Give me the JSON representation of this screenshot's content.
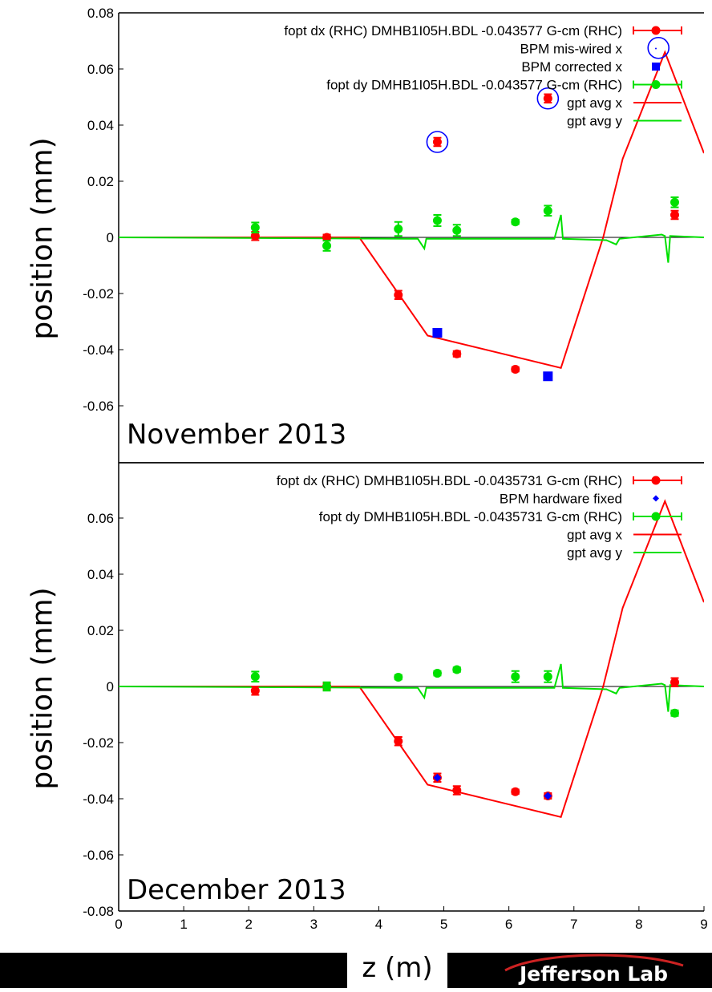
{
  "axis": {
    "xlabel": "z (m)",
    "ylabel": "position (mm)",
    "xlim": [
      0,
      9
    ],
    "xticks": [
      "0",
      "1",
      "2",
      "3",
      "4",
      "5",
      "6",
      "7",
      "8",
      "9"
    ]
  },
  "footer": {
    "logo_text": "Jefferson Lab"
  },
  "colors": {
    "red": "#ff0000",
    "green": "#00e000",
    "blue": "#0000ff",
    "black": "#000000"
  },
  "chart_data": [
    {
      "type": "scatter",
      "title": "",
      "annotation": "November 2013",
      "xlabel": "z (m)",
      "ylabel": "position (mm)",
      "xlim": [
        0,
        9
      ],
      "ylim": [
        -0.08,
        0.08
      ],
      "yticks": [
        "0.08",
        "0.06",
        "0.04",
        "0.02",
        "0",
        "-0.02",
        "-0.04",
        "-0.06"
      ],
      "grid": false,
      "legend_position": "top-right",
      "series": [
        {
          "name": "fopt dx (RHC) DMHB1I05H.BDL -0.043577 G-cm (RHC)",
          "kind": "errorpoints",
          "color": "#ff0000",
          "points": [
            [
              2.1,
              0.0005,
              0.0015
            ],
            [
              3.2,
              0.0,
              0.001
            ],
            [
              4.3,
              -0.0205,
              0.0015
            ],
            [
              4.9,
              0.034,
              0.0015
            ],
            [
              5.2,
              -0.0415,
              0.001
            ],
            [
              6.1,
              -0.047,
              0.0008
            ],
            [
              6.6,
              0.0495,
              0.0015
            ],
            [
              8.55,
              0.008,
              0.0015
            ]
          ]
        },
        {
          "name": "BPM mis-wired x",
          "kind": "circles",
          "color": "#0000ff",
          "points": [
            [
              4.9,
              0.034
            ],
            [
              6.6,
              0.0495
            ],
            [
              8.3,
              0.0675
            ]
          ]
        },
        {
          "name": "BPM corrected x",
          "kind": "squares",
          "color": "#0000ff",
          "points": [
            [
              4.9,
              -0.034
            ],
            [
              6.6,
              -0.0495
            ]
          ]
        },
        {
          "name": "fopt dy DMHB1I05H.BDL -0.043577 G-cm (RHC)",
          "kind": "errorpoints",
          "color": "#00e000",
          "points": [
            [
              2.1,
              0.0035,
              0.0018
            ],
            [
              3.2,
              -0.003,
              0.0018
            ],
            [
              4.3,
              0.003,
              0.0025
            ],
            [
              4.9,
              0.006,
              0.002
            ],
            [
              5.2,
              0.0025,
              0.002
            ],
            [
              6.1,
              0.0055,
              0.0008
            ],
            [
              6.6,
              0.0095,
              0.0018
            ],
            [
              8.55,
              0.0125,
              0.0018
            ]
          ]
        },
        {
          "name": "gpt avg x",
          "kind": "line",
          "color": "#ff0000",
          "points": [
            [
              0,
              0
            ],
            [
              3.7,
              0
            ],
            [
              4.75,
              -0.035
            ],
            [
              6.8,
              -0.0465
            ],
            [
              7.45,
              0
            ],
            [
              7.75,
              0.028
            ],
            [
              8.4,
              0.066
            ],
            [
              9.0,
              0.03
            ]
          ]
        },
        {
          "name": "gpt avg y",
          "kind": "line",
          "color": "#00e000",
          "points": [
            [
              0,
              0
            ],
            [
              4.6,
              -0.0005
            ],
            [
              4.7,
              -0.004
            ],
            [
              4.73,
              -0.0005
            ],
            [
              6.7,
              -0.0005
            ],
            [
              6.8,
              0.008
            ],
            [
              6.83,
              -0.0005
            ],
            [
              7.5,
              -0.001
            ],
            [
              7.65,
              -0.0025
            ],
            [
              7.7,
              -0.0005
            ],
            [
              8.35,
              0.001
            ],
            [
              8.4,
              0.0005
            ],
            [
              8.45,
              -0.009
            ],
            [
              8.48,
              0.0005
            ],
            [
              9.0,
              0.0
            ]
          ]
        }
      ]
    },
    {
      "type": "scatter",
      "title": "",
      "annotation": "December 2013",
      "xlabel": "z (m)",
      "ylabel": "position (mm)",
      "xlim": [
        0,
        9
      ],
      "ylim": [
        -0.08,
        0.08
      ],
      "yticks": [
        "0.06",
        "0.04",
        "0.02",
        "0",
        "-0.02",
        "-0.04",
        "-0.06",
        "-0.08"
      ],
      "grid": false,
      "legend_position": "top-right",
      "series": [
        {
          "name": "fopt dx (RHC) DMHB1I05H.BDL -0.0435731 G-cm (RHC)",
          "kind": "errorpoints",
          "color": "#ff0000",
          "points": [
            [
              2.1,
              -0.0015,
              0.0015
            ],
            [
              3.2,
              0.0,
              0.001
            ],
            [
              4.3,
              -0.0195,
              0.0015
            ],
            [
              4.9,
              -0.0325,
              0.0015
            ],
            [
              5.2,
              -0.037,
              0.0015
            ],
            [
              6.1,
              -0.0375,
              0.0008
            ],
            [
              6.6,
              -0.039,
              0.001
            ],
            [
              8.55,
              0.0015,
              0.0015
            ]
          ]
        },
        {
          "name": "BPM hardware fixed",
          "kind": "diamonds",
          "color": "#0000ff",
          "points": [
            [
              4.9,
              -0.0325
            ],
            [
              6.6,
              -0.039
            ]
          ]
        },
        {
          "name": "fopt dy DMHB1I05H.BDL -0.0435731 G-cm (RHC)",
          "kind": "errorpoints",
          "color": "#00e000",
          "points": [
            [
              2.1,
              0.0035,
              0.0018
            ],
            [
              3.2,
              0.0,
              0.0015
            ],
            [
              4.3,
              0.0033,
              0.0008
            ],
            [
              4.9,
              0.0047,
              0.0008
            ],
            [
              5.2,
              0.006,
              0.0008
            ],
            [
              6.1,
              0.0035,
              0.002
            ],
            [
              6.6,
              0.0035,
              0.002
            ],
            [
              8.55,
              -0.0095,
              0.001
            ]
          ]
        },
        {
          "name": "gpt avg x",
          "kind": "line",
          "color": "#ff0000",
          "points": [
            [
              0,
              0
            ],
            [
              3.7,
              0
            ],
            [
              4.75,
              -0.035
            ],
            [
              6.8,
              -0.0465
            ],
            [
              7.45,
              0
            ],
            [
              7.75,
              0.028
            ],
            [
              8.4,
              0.066
            ],
            [
              9.0,
              0.03
            ]
          ]
        },
        {
          "name": "gpt avg y",
          "kind": "line",
          "color": "#00e000",
          "points": [
            [
              0,
              0
            ],
            [
              4.6,
              -0.0005
            ],
            [
              4.7,
              -0.004
            ],
            [
              4.73,
              -0.0005
            ],
            [
              6.7,
              -0.0005
            ],
            [
              6.8,
              0.008
            ],
            [
              6.83,
              -0.0005
            ],
            [
              7.5,
              -0.001
            ],
            [
              7.65,
              -0.0025
            ],
            [
              7.7,
              -0.0005
            ],
            [
              8.35,
              0.001
            ],
            [
              8.4,
              0.0005
            ],
            [
              8.45,
              -0.009
            ],
            [
              8.48,
              0.0005
            ],
            [
              9.0,
              0.0
            ]
          ]
        }
      ]
    }
  ]
}
